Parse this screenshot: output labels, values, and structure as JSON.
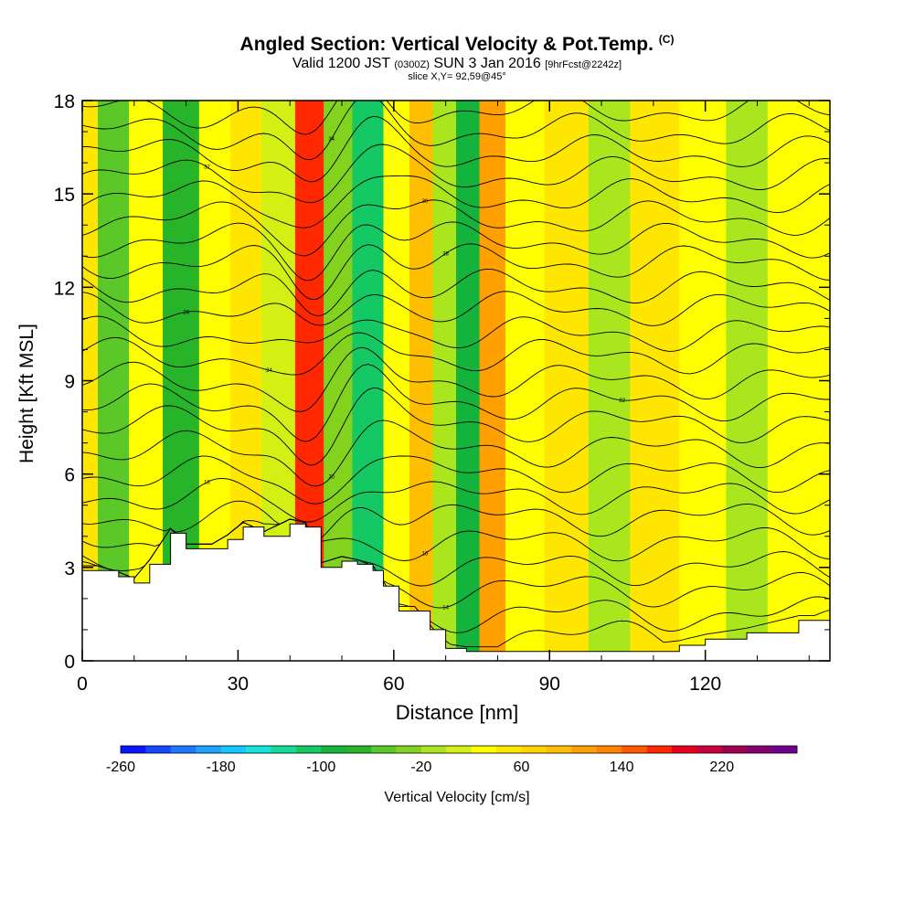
{
  "header": {
    "title": "Angled Section: Vertical Velocity & Pot.Temp.",
    "title_unit": "(C)",
    "valid_prefix": "Valid 1200 JST",
    "valid_utc": "(0300Z)",
    "valid_date": "SUN 3 Jan 2016",
    "forecast": "[9hrFcst@2242z]",
    "slice": "slice X,Y= 92,59@45°"
  },
  "chart_data": {
    "type": "heatmap",
    "title": "Angled Section: Vertical Velocity & Pot.Temp.",
    "xlabel": "Distance [nm]",
    "ylabel": "Height [Kft MSL]",
    "xlim": [
      0,
      144
    ],
    "ylim": [
      0,
      18
    ],
    "x_ticks": [
      0,
      30,
      60,
      90,
      120
    ],
    "y_ticks": [
      0,
      3,
      6,
      9,
      12,
      15,
      18
    ],
    "grid": false,
    "velocity_bands": [
      {
        "x": 0,
        "value": 40
      },
      {
        "x": 6,
        "value": -60
      },
      {
        "x": 12,
        "value": 30
      },
      {
        "x": 19,
        "value": -80
      },
      {
        "x": 26,
        "value": 20
      },
      {
        "x": 31,
        "value": 40
      },
      {
        "x": 38,
        "value": 10
      },
      {
        "x": 44,
        "value": 160
      },
      {
        "x": 49,
        "value": -40
      },
      {
        "x": 55,
        "value": -120
      },
      {
        "x": 61,
        "value": 20
      },
      {
        "x": 65,
        "value": 80
      },
      {
        "x": 70,
        "value": -20
      },
      {
        "x": 74,
        "value": -100
      },
      {
        "x": 79,
        "value": 100
      },
      {
        "x": 84,
        "value": 30
      },
      {
        "x": 94,
        "value": 40
      },
      {
        "x": 101,
        "value": -10
      },
      {
        "x": 110,
        "value": 50
      },
      {
        "x": 120,
        "value": 20
      },
      {
        "x": 128,
        "value": -20
      },
      {
        "x": 136,
        "value": 30
      },
      {
        "x": 144,
        "value": 20
      }
    ],
    "terrain": {
      "x": [
        0,
        3,
        7,
        10,
        13,
        17,
        20,
        25,
        28,
        31,
        35,
        40,
        43,
        46,
        50,
        53,
        56,
        58,
        61,
        64,
        67,
        70,
        74,
        78,
        85,
        95,
        105,
        115,
        120,
        128,
        138,
        144
      ],
      "height": [
        2.9,
        2.9,
        2.7,
        2.5,
        3.1,
        4.1,
        3.6,
        3.6,
        3.9,
        4.3,
        4.0,
        4.4,
        4.3,
        3.0,
        3.2,
        3.1,
        2.9,
        2.4,
        1.6,
        1.6,
        1.0,
        0.4,
        0.3,
        0.3,
        0.3,
        0.3,
        0.3,
        0.5,
        0.7,
        0.9,
        1.3,
        1.3
      ]
    },
    "isentropes": {
      "levels": [
        {
          "label": "",
          "base_height": 0.8
        },
        {
          "label": "",
          "base_height": 1.5
        },
        {
          "label": "14",
          "base_height": 2.3
        },
        {
          "label": "",
          "base_height": 3.0
        },
        {
          "label": "16",
          "base_height": 3.8
        },
        {
          "label": "",
          "base_height": 4.6
        },
        {
          "label": "18",
          "base_height": 5.3
        },
        {
          "label": "",
          "base_height": 6.0
        },
        {
          "label": "20",
          "base_height": 6.8
        },
        {
          "label": "",
          "base_height": 7.6
        },
        {
          "label": "22",
          "base_height": 8.3
        },
        {
          "label": "",
          "base_height": 9.0
        },
        {
          "label": "24",
          "base_height": 9.8
        },
        {
          "label": "",
          "base_height": 10.5
        },
        {
          "label": "26",
          "base_height": 11.3
        },
        {
          "label": "",
          "base_height": 12.0
        },
        {
          "label": "28",
          "base_height": 12.8
        },
        {
          "label": "",
          "base_height": 13.5
        },
        {
          "label": "30",
          "base_height": 14.2
        },
        {
          "label": "",
          "base_height": 14.9
        },
        {
          "label": "32",
          "base_height": 15.6
        },
        {
          "label": "",
          "base_height": 16.3
        },
        {
          "label": "34",
          "base_height": 17.0
        },
        {
          "label": "",
          "base_height": 17.7
        }
      ]
    },
    "colorbar": {
      "label": "Vertical Velocity [cm/s]",
      "min": -260,
      "max": 280,
      "step": 20,
      "tick_values": [
        -260,
        -180,
        -100,
        -20,
        60,
        140,
        220
      ],
      "tick_labels": [
        "-260",
        "-180",
        "-100",
        "-20",
        "60",
        "140",
        "220"
      ],
      "colors": [
        "#0a14ff",
        "#1448ff",
        "#1e78ff",
        "#1ea0ff",
        "#14c8ff",
        "#14e6dc",
        "#14dc96",
        "#14c864",
        "#14b43c",
        "#28b428",
        "#5ac828",
        "#82d21e",
        "#aae61e",
        "#d2f014",
        "#ffff00",
        "#ffe600",
        "#ffd200",
        "#ffbe00",
        "#ffa000",
        "#ff8200",
        "#ff5a00",
        "#ff2800",
        "#e6001e",
        "#c8003c",
        "#a00050",
        "#82006e",
        "#6e008c"
      ]
    }
  }
}
